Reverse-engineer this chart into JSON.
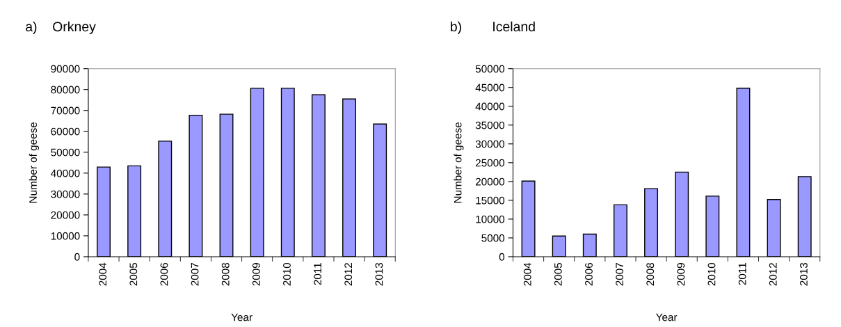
{
  "chart_data": [
    {
      "type": "bar",
      "title": "a)    Orkney",
      "xlabel": "Year",
      "ylabel": "Number of geese",
      "categories": [
        "2004",
        "2005",
        "2006",
        "2007",
        "2008",
        "2009",
        "2010",
        "2011",
        "2012",
        "2013"
      ],
      "values": [
        42900,
        43500,
        55300,
        67700,
        68200,
        80600,
        80600,
        77500,
        75500,
        63500
      ],
      "color": "#9999ff",
      "ylim": [
        0,
        90000
      ],
      "yticks": [
        0,
        10000,
        20000,
        30000,
        40000,
        50000,
        60000,
        70000,
        80000,
        90000
      ],
      "grid": false
    },
    {
      "type": "bar",
      "title": "b)        Iceland",
      "xlabel": "Year",
      "ylabel": "Number of geese",
      "categories": [
        "2004",
        "2005",
        "2006",
        "2007",
        "2008",
        "2009",
        "2010",
        "2011",
        "2012",
        "2013"
      ],
      "values": [
        20100,
        5500,
        6000,
        13800,
        18100,
        22500,
        16100,
        44800,
        15200,
        21300
      ],
      "color": "#9999ff",
      "ylim": [
        0,
        50000
      ],
      "yticks": [
        0,
        5000,
        10000,
        15000,
        20000,
        25000,
        30000,
        35000,
        40000,
        45000,
        50000
      ],
      "grid": false
    }
  ]
}
